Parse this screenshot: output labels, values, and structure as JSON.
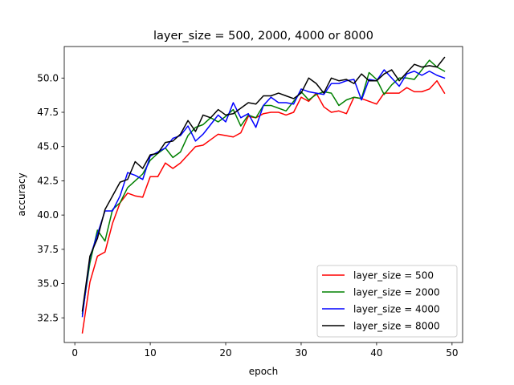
{
  "chart_data": {
    "type": "line",
    "title": "layer_size = 500, 2000, 4000 or 8000",
    "xlabel": "epoch",
    "ylabel": "accuracy",
    "xlim": [
      -1.4,
      51.4
    ],
    "ylim": [
      30.7,
      52.3
    ],
    "xticks": [
      0,
      10,
      20,
      30,
      40,
      50
    ],
    "yticks": [
      32.5,
      35.0,
      37.5,
      40.0,
      42.5,
      45.0,
      47.5,
      50.0
    ],
    "ytick_labels": [
      "32.5",
      "35.0",
      "37.5",
      "40.0",
      "42.5",
      "45.0",
      "47.5",
      "50.0"
    ],
    "grid": false,
    "legend_position": "lower-right",
    "x": [
      1,
      2,
      3,
      4,
      5,
      6,
      7,
      8,
      9,
      10,
      11,
      12,
      13,
      14,
      15,
      16,
      17,
      18,
      19,
      20,
      21,
      22,
      23,
      24,
      25,
      26,
      27,
      28,
      29,
      30,
      31,
      32,
      33,
      34,
      35,
      36,
      37,
      38,
      39,
      40,
      41,
      42,
      43,
      44,
      45,
      46,
      47,
      48,
      49
    ],
    "series": [
      {
        "name": "layer_size = 500",
        "color": "#ff0000",
        "values": [
          31.4,
          35.1,
          37.0,
          37.3,
          39.4,
          40.9,
          41.6,
          41.4,
          41.3,
          42.8,
          42.8,
          43.8,
          43.4,
          43.8,
          44.4,
          45.0,
          45.1,
          45.5,
          45.9,
          45.8,
          45.7,
          46.0,
          47.2,
          47.1,
          47.4,
          47.5,
          47.5,
          47.3,
          47.5,
          48.6,
          48.3,
          48.9,
          47.9,
          47.5,
          47.6,
          47.4,
          48.6,
          48.5,
          48.3,
          48.1,
          48.9,
          48.9,
          48.9,
          49.3,
          49.0,
          49.0,
          49.2,
          49.8,
          48.9
        ]
      },
      {
        "name": "layer_size = 2000",
        "color": "#008000",
        "values": [
          32.8,
          36.5,
          38.9,
          38.1,
          40.4,
          40.9,
          42.0,
          42.5,
          43.0,
          44.0,
          44.5,
          44.9,
          44.2,
          44.6,
          45.8,
          46.4,
          46.6,
          47.1,
          46.8,
          47.2,
          47.7,
          46.5,
          47.3,
          47.1,
          48.0,
          48.0,
          47.8,
          47.6,
          48.3,
          49.0,
          48.4,
          48.8,
          49.0,
          48.9,
          48.0,
          48.4,
          48.6,
          48.5,
          50.4,
          49.9,
          48.8,
          49.5,
          50.0,
          50.0,
          49.9,
          50.6,
          51.3,
          50.8,
          50.5
        ]
      },
      {
        "name": "layer_size = 4000",
        "color": "#0000ff",
        "values": [
          32.6,
          36.9,
          38.6,
          40.3,
          40.3,
          41.4,
          43.1,
          42.9,
          42.6,
          44.3,
          44.6,
          44.9,
          45.6,
          45.8,
          46.5,
          45.4,
          45.9,
          46.6,
          47.3,
          46.8,
          48.2,
          47.1,
          47.4,
          46.4,
          48.0,
          48.6,
          48.2,
          48.2,
          48.1,
          49.2,
          49.0,
          48.9,
          48.8,
          49.6,
          49.6,
          49.8,
          49.9,
          48.4,
          49.9,
          49.8,
          50.6,
          50.0,
          49.4,
          50.3,
          50.5,
          50.2,
          50.5,
          50.2,
          50.0
        ]
      },
      {
        "name": "layer_size = 8000",
        "color": "#000000",
        "values": [
          33.0,
          37.0,
          38.3,
          40.4,
          41.4,
          42.4,
          42.6,
          43.9,
          43.4,
          44.4,
          44.5,
          45.3,
          45.4,
          45.9,
          46.9,
          46.1,
          47.3,
          47.1,
          47.7,
          47.3,
          47.4,
          47.8,
          48.2,
          48.1,
          48.7,
          48.7,
          48.9,
          48.7,
          48.5,
          48.9,
          50.0,
          49.6,
          48.9,
          50.0,
          49.8,
          49.9,
          49.6,
          50.3,
          49.8,
          49.8,
          50.3,
          50.6,
          49.8,
          50.4,
          51.0,
          50.8,
          50.9,
          50.8,
          51.5
        ]
      }
    ]
  }
}
